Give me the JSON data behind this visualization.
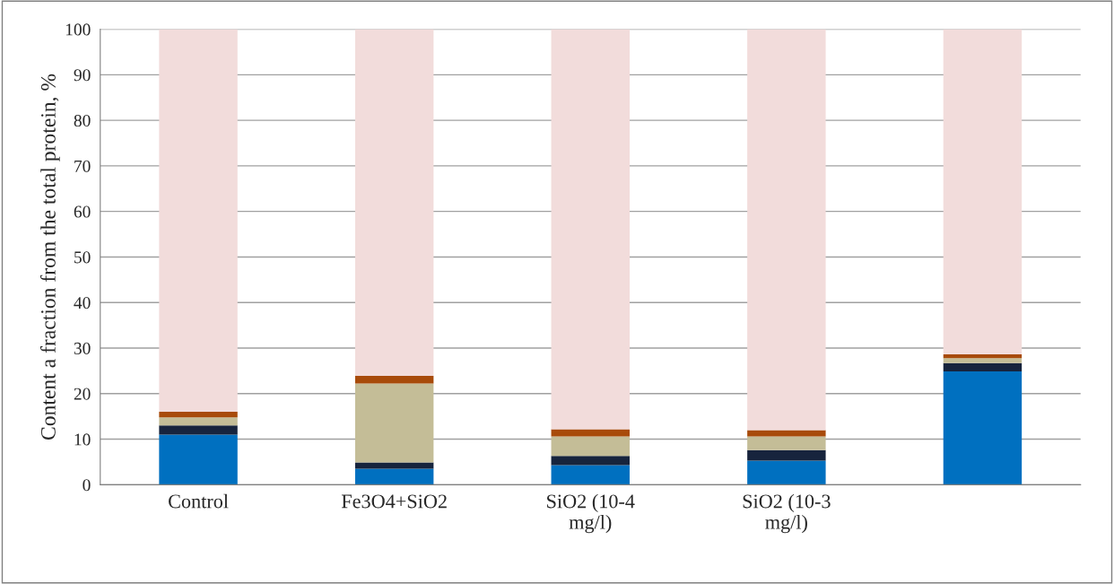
{
  "chart_data": {
    "type": "bar",
    "stacked": true,
    "ylabel": "Content a fraction from the total protein, %",
    "categories": [
      "Control",
      "Fe3O4+SiO2",
      "SiO2 (10-4\nmg/l)",
      "SiO2 (10-3\nmg/l)",
      null
    ],
    "series": [
      {
        "color": "#0070c0",
        "values": [
          11.0,
          3.5,
          4.3,
          5.3,
          24.9
        ]
      },
      {
        "color": "#17243d",
        "values": [
          2.0,
          1.4,
          2.0,
          2.3,
          1.8
        ]
      },
      {
        "color": "#c4bd97",
        "values": [
          1.8,
          17.3,
          4.3,
          3.0,
          1.1
        ]
      },
      {
        "color": "#a84b0a",
        "values": [
          1.2,
          1.7,
          1.6,
          1.4,
          0.8
        ]
      },
      {
        "color": "#f2dcdb",
        "values": [
          84.0,
          76.1,
          87.8,
          88.0,
          71.4
        ]
      }
    ],
    "ylim": [
      0,
      100
    ],
    "yticks": [
      0,
      10,
      20,
      30,
      40,
      50,
      60,
      70,
      80,
      90,
      100
    ],
    "grid": "y",
    "legend": false
  }
}
